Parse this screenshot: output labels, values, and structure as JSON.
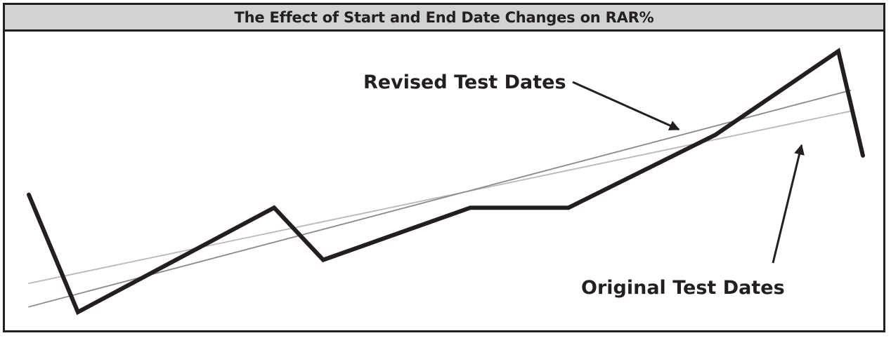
{
  "chart_data": {
    "type": "line",
    "title": "The Effect of Start and End Date Changes on RAR%",
    "xlabel": "",
    "ylabel": "",
    "grid": false,
    "legend": "none",
    "series": [
      {
        "role": "price",
        "color": "#231f20",
        "points": [
          [
            0,
            45
          ],
          [
            2,
            0
          ],
          [
            10,
            40
          ],
          [
            12,
            20
          ],
          [
            18,
            40
          ],
          [
            22,
            40
          ],
          [
            28,
            68
          ],
          [
            33,
            100
          ],
          [
            34,
            60
          ]
        ]
      },
      {
        "role": "regression-revised",
        "color": "#8a8a8a",
        "points": [
          [
            0,
            2
          ],
          [
            33.5,
            85
          ]
        ]
      },
      {
        "role": "regression-original",
        "color": "#b8b8b8",
        "points": [
          [
            0,
            11
          ],
          [
            33.5,
            77
          ]
        ]
      }
    ],
    "annotations": [
      {
        "text": "Revised Test Dates",
        "target": "regression-revised",
        "at": [
          26.5,
          70
        ]
      },
      {
        "text": "Original Test Dates",
        "target": "regression-original",
        "at": [
          31.5,
          64
        ]
      }
    ]
  }
}
